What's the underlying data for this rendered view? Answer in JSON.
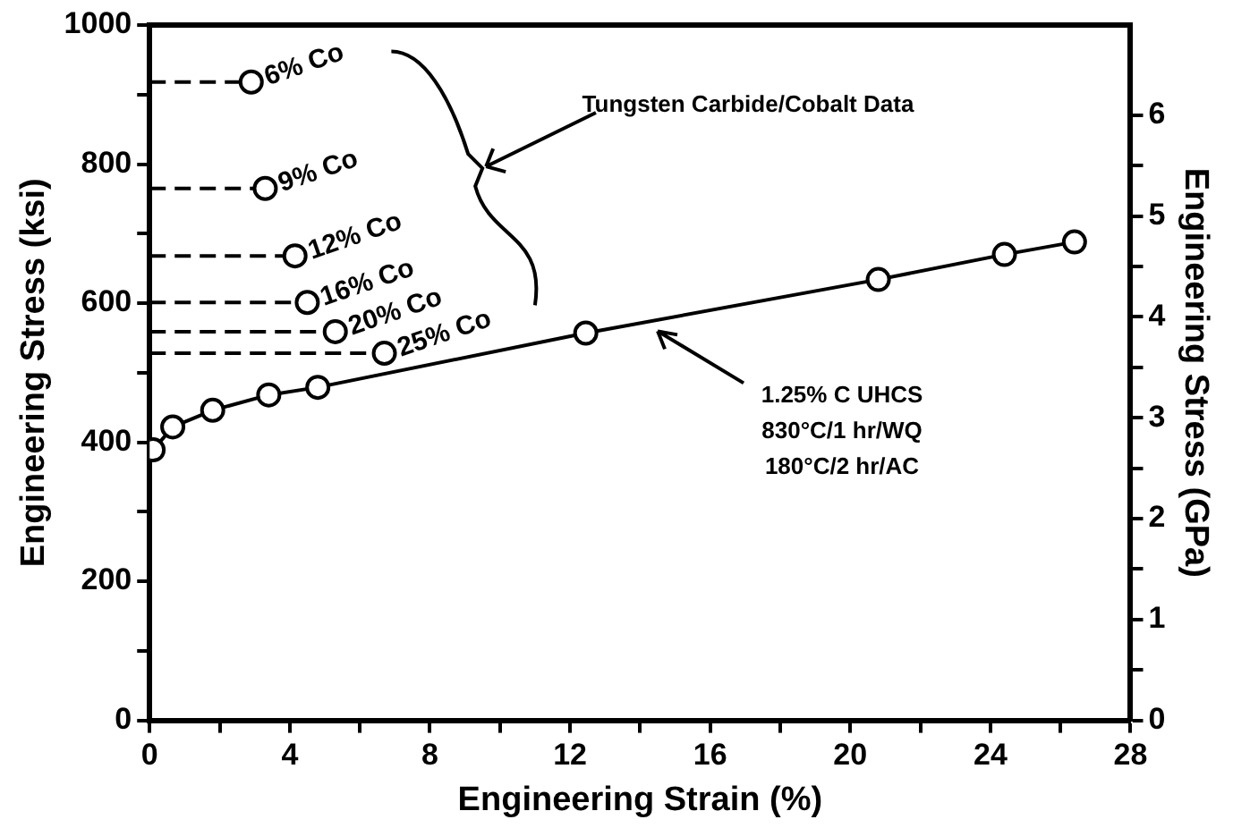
{
  "chart_data": {
    "type": "line",
    "xlabel": "Engineering Strain (%)",
    "ylabel": "Engineering Stress (ksi)",
    "y2label": "Engineering Stress (GPa)",
    "xlim": [
      0,
      28
    ],
    "xticks": [
      0,
      {
        "value": 2,
        "label": null
      },
      4,
      {
        "value": 6,
        "label": null
      },
      8,
      {
        "value": 10,
        "label": null
      },
      12,
      {
        "value": 14,
        "label": null
      },
      16,
      {
        "value": 18,
        "label": null
      },
      20,
      {
        "value": 22,
        "label": null
      },
      24,
      {
        "value": 26,
        "label": null
      },
      28
    ],
    "ylim": [
      0,
      1000
    ],
    "yticks": [
      0,
      {
        "value": 100,
        "label": null
      },
      200,
      {
        "value": 300,
        "label": null
      },
      400,
      {
        "value": 500,
        "label": null
      },
      600,
      {
        "value": 700,
        "label": null
      },
      800,
      {
        "value": 900,
        "label": null
      },
      1000
    ],
    "y2lim": [
      0,
      6.895
    ],
    "y2ticks": [
      0,
      {
        "value": 0.5,
        "label": null
      },
      1,
      {
        "value": 1.5,
        "label": null
      },
      2,
      {
        "value": 2.5,
        "label": null
      },
      3,
      {
        "value": 3.5,
        "label": null
      },
      4,
      {
        "value": 4.5,
        "label": null
      },
      5,
      {
        "value": 5.5,
        "label": null
      },
      6
    ],
    "grid": false,
    "legend": false,
    "marker": "circle",
    "series": [
      {
        "color": "#000000",
        "line_style": "solid",
        "x": [
          0.1,
          0.66,
          1.8,
          3.4,
          4.8,
          12.45,
          20.8,
          24.4,
          26.4
        ],
        "values": [
          389,
          422,
          446,
          468,
          479,
          557,
          634,
          670,
          688
        ]
      },
      {
        "name": "6% Co",
        "color": "#000000",
        "line_style": "dashed",
        "x": [
          0,
          2.9
        ],
        "values": [
          918,
          918
        ]
      },
      {
        "name": "9% Co",
        "color": "#000000",
        "line_style": "dashed",
        "x": [
          0,
          3.3
        ],
        "values": [
          765,
          765
        ]
      },
      {
        "name": "12% Co",
        "color": "#000000",
        "line_style": "dashed",
        "x": [
          0,
          4.15
        ],
        "values": [
          668,
          668
        ]
      },
      {
        "name": "16% Co",
        "color": "#000000",
        "line_style": "dashed",
        "x": [
          0,
          4.5
        ],
        "values": [
          601,
          601
        ]
      },
      {
        "name": "20% Co",
        "color": "#000000",
        "line_style": "dashed",
        "x": [
          0,
          5.3
        ],
        "values": [
          559,
          559
        ]
      },
      {
        "name": "25% Co",
        "color": "#000000",
        "line_style": "dashed",
        "x": [
          0,
          6.7
        ],
        "values": [
          528,
          528
        ]
      }
    ],
    "annotations": [
      "Tungsten Carbide/Cobalt Data",
      "1.25% C UHCS\n830°C/1 hr/WQ\n180°C/2 hr/AC"
    ]
  }
}
